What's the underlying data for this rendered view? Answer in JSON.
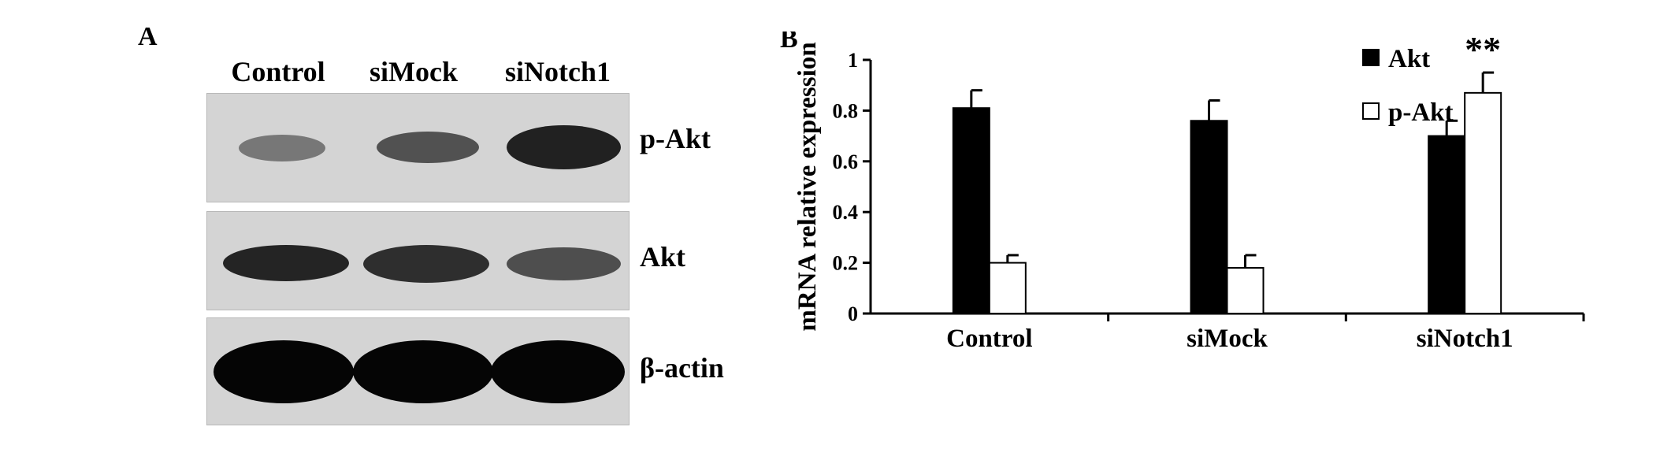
{
  "panel_a": {
    "letter": "A",
    "lanes": [
      "Control",
      "siMock",
      "siNotch1"
    ],
    "rows": [
      {
        "label": "p-Akt",
        "intensity": [
          0.35,
          0.55,
          0.9
        ]
      },
      {
        "label": "Akt",
        "intensity": [
          0.85,
          0.8,
          0.6
        ]
      },
      {
        "label": "β-actin",
        "intensity": [
          1.0,
          1.0,
          1.0
        ]
      }
    ]
  },
  "chart_data": {
    "panel_letter": "B",
    "type": "bar",
    "categories": [
      "Control",
      "siMock",
      "siNotch1"
    ],
    "series": [
      {
        "name": "Akt",
        "values": [
          0.81,
          0.76,
          0.7
        ],
        "errors": [
          0.07,
          0.08,
          0.06
        ],
        "color": "#000000"
      },
      {
        "name": "p-Akt",
        "values": [
          0.2,
          0.18,
          0.87
        ],
        "errors": [
          0.03,
          0.05,
          0.08
        ],
        "color": "#ffffff"
      }
    ],
    "ylabel": "mRNA relative expression",
    "ylim": [
      0,
      1
    ],
    "yticks": [
      "0",
      "0.2",
      "0.4",
      "0.6",
      "0.8",
      "1"
    ],
    "annotation": {
      "text": "**",
      "category": "siNotch1",
      "series": "p-Akt"
    },
    "legend_position": "top-right",
    "grid": false
  }
}
